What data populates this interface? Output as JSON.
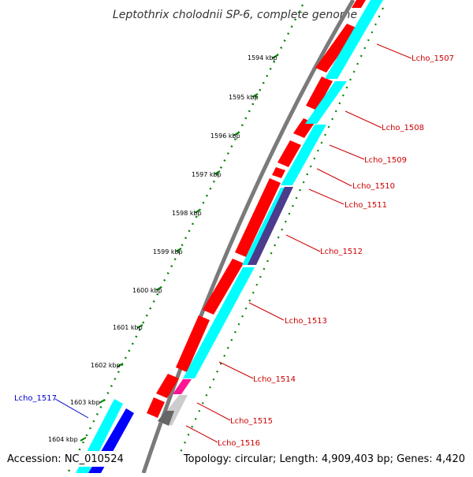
{
  "title": "Leptothrix cholodnii SP-6, complete genome",
  "footer": {
    "accession": "Accession: NC_010524",
    "topology": "Topology: circular; Length: 4,909,403 bp; Genes: 4,420"
  },
  "kbp_labels": [
    "1594 kbp",
    "1595 kbp",
    "1596 kbp",
    "1597 kbp",
    "1598 kbp",
    "1599 kbp",
    "1600 kbp",
    "1601 kbp",
    "1602 kbp",
    "1603 kbp",
    "1604 kbp"
  ],
  "genes": [
    {
      "label": "Lcho_1507",
      "color": "#cc0000"
    },
    {
      "label": "Lcho_1508",
      "color": "#cc0000"
    },
    {
      "label": "Lcho_1509",
      "color": "#cc0000"
    },
    {
      "label": "Lcho_1510",
      "color": "#cc0000"
    },
    {
      "label": "Lcho_1511",
      "color": "#cc0000"
    },
    {
      "label": "Lcho_1512",
      "color": "#cc0000"
    },
    {
      "label": "Lcho_1513",
      "color": "#cc0000"
    },
    {
      "label": "Lcho_1514",
      "color": "#cc0000"
    },
    {
      "label": "Lcho_1515",
      "color": "#cc0000"
    },
    {
      "label": "Lcho_1516",
      "color": "#cc0000"
    },
    {
      "label": "Lcho_1517",
      "color": "#0000cc"
    }
  ],
  "colors": {
    "cds_forward": "#ff0000",
    "cds_reverse": "#0000ff",
    "feature_cyan": "#00ffff",
    "feature_purple": "#4b3c8c",
    "feature_magenta": "#ff1493",
    "feature_gray": "#777777",
    "backbone": "#808080",
    "ticks": "#008000"
  }
}
